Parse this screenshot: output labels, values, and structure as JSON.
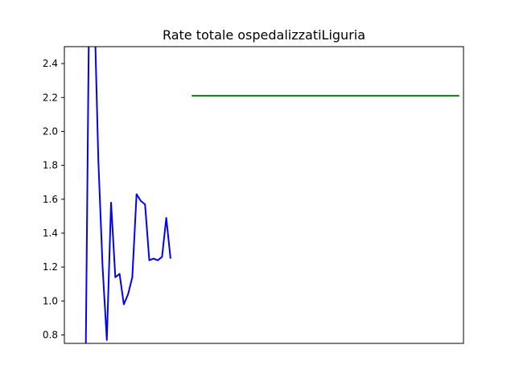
{
  "chart_data": {
    "type": "line",
    "title": "Rate totale ospedalizzatiLiguria",
    "xlabel": "",
    "ylabel": "",
    "ylim": [
      0.75,
      2.5
    ],
    "xlim": [
      -4.0,
      90.0
    ],
    "yticks": [
      0.8,
      1.0,
      1.2,
      1.4,
      1.6,
      1.8,
      2.0,
      2.2,
      2.4
    ],
    "ytick_labels": [
      "0.8",
      "1.0",
      "1.2",
      "1.4",
      "1.6",
      "1.8",
      "2.0",
      "2.2",
      "2.4"
    ],
    "grid": false,
    "series": [
      {
        "color": "#0000ff",
        "x": [
          1,
          2,
          3,
          4,
          5,
          6,
          7,
          8,
          9,
          10,
          11,
          12,
          13,
          14,
          15,
          16,
          17,
          18,
          19,
          20,
          21,
          22,
          23,
          24,
          25
        ],
        "y": [
          0.6,
          3.2,
          2.8,
          1.83,
          1.2,
          0.77,
          1.58,
          1.14,
          1.16,
          0.98,
          1.04,
          1.14,
          1.63,
          1.59,
          1.57,
          1.24,
          1.25,
          1.24,
          1.26,
          1.49,
          1.25,
          null,
          null,
          null,
          null
        ]
      },
      {
        "color": "#008000",
        "x": [
          26,
          89
        ],
        "y": [
          2.21,
          2.21
        ]
      }
    ]
  }
}
